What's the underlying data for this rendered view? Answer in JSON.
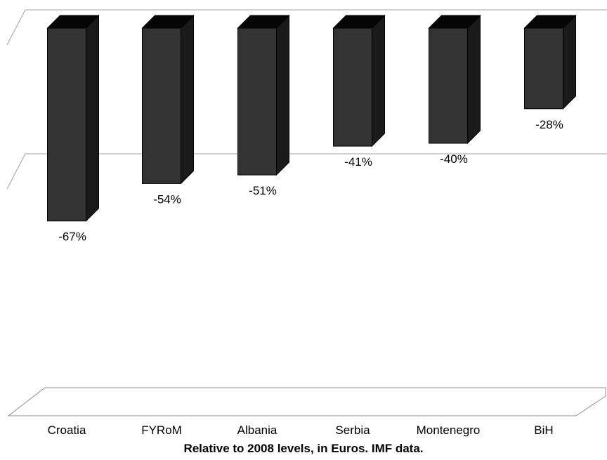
{
  "chart_data": {
    "type": "bar",
    "categories": [
      "Croatia",
      "FYRoM",
      "Albania",
      "Serbia",
      "Montenegro",
      "BiH"
    ],
    "values": [
      -67,
      -54,
      -51,
      -41,
      -40,
      -28
    ],
    "data_labels": [
      "-67%",
      "-54%",
      "-51%",
      "-41%",
      "-40%",
      "-28%"
    ],
    "value_unit": "%",
    "xlabel": "Relative to 2008 levels, in Euros. IMF data.",
    "ylabel": "",
    "ylim": [
      -100,
      0
    ],
    "grid": true,
    "style": "3d-column",
    "bar_color": "#333333",
    "bar_side_color": "#1a1a1a",
    "bar_top_color": "#050505",
    "grid_color": "#a0a0a0"
  }
}
